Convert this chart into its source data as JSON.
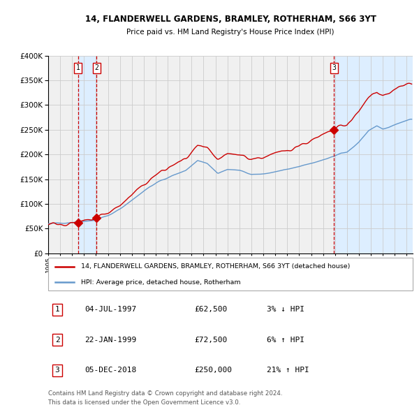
{
  "title": "14, FLANDERWELL GARDENS, BRAMLEY, ROTHERHAM, S66 3YT",
  "subtitle": "Price paid vs. HM Land Registry's House Price Index (HPI)",
  "legend_line1": "14, FLANDERWELL GARDENS, BRAMLEY, ROTHERHAM, S66 3YT (detached house)",
  "legend_line2": "HPI: Average price, detached house, Rotherham",
  "transactions": [
    {
      "num": 1,
      "date": "04-JUL-1997",
      "price": 62500,
      "pct": "3%",
      "dir": "↓"
    },
    {
      "num": 2,
      "date": "22-JAN-1999",
      "price": 72500,
      "pct": "6%",
      "dir": "↑"
    },
    {
      "num": 3,
      "date": "05-DEC-2018",
      "price": 250000,
      "pct": "21%",
      "dir": "↑"
    }
  ],
  "footnote1": "Contains HM Land Registry data © Crown copyright and database right 2024.",
  "footnote2": "This data is licensed under the Open Government Licence v3.0.",
  "transaction_dates_year": [
    1997.5,
    1999.05,
    2018.92
  ],
  "transaction_prices": [
    62500,
    72500,
    250000
  ],
  "ylim": [
    0,
    400000
  ],
  "xlim_start": 1995.0,
  "xlim_end": 2025.5,
  "hpi_color": "#6699cc",
  "price_color": "#cc0000",
  "dot_color": "#cc0000",
  "vline_color": "#cc0000",
  "shade_color": "#ddeeff",
  "grid_color": "#cccccc",
  "bg_color": "#f0f0f0"
}
